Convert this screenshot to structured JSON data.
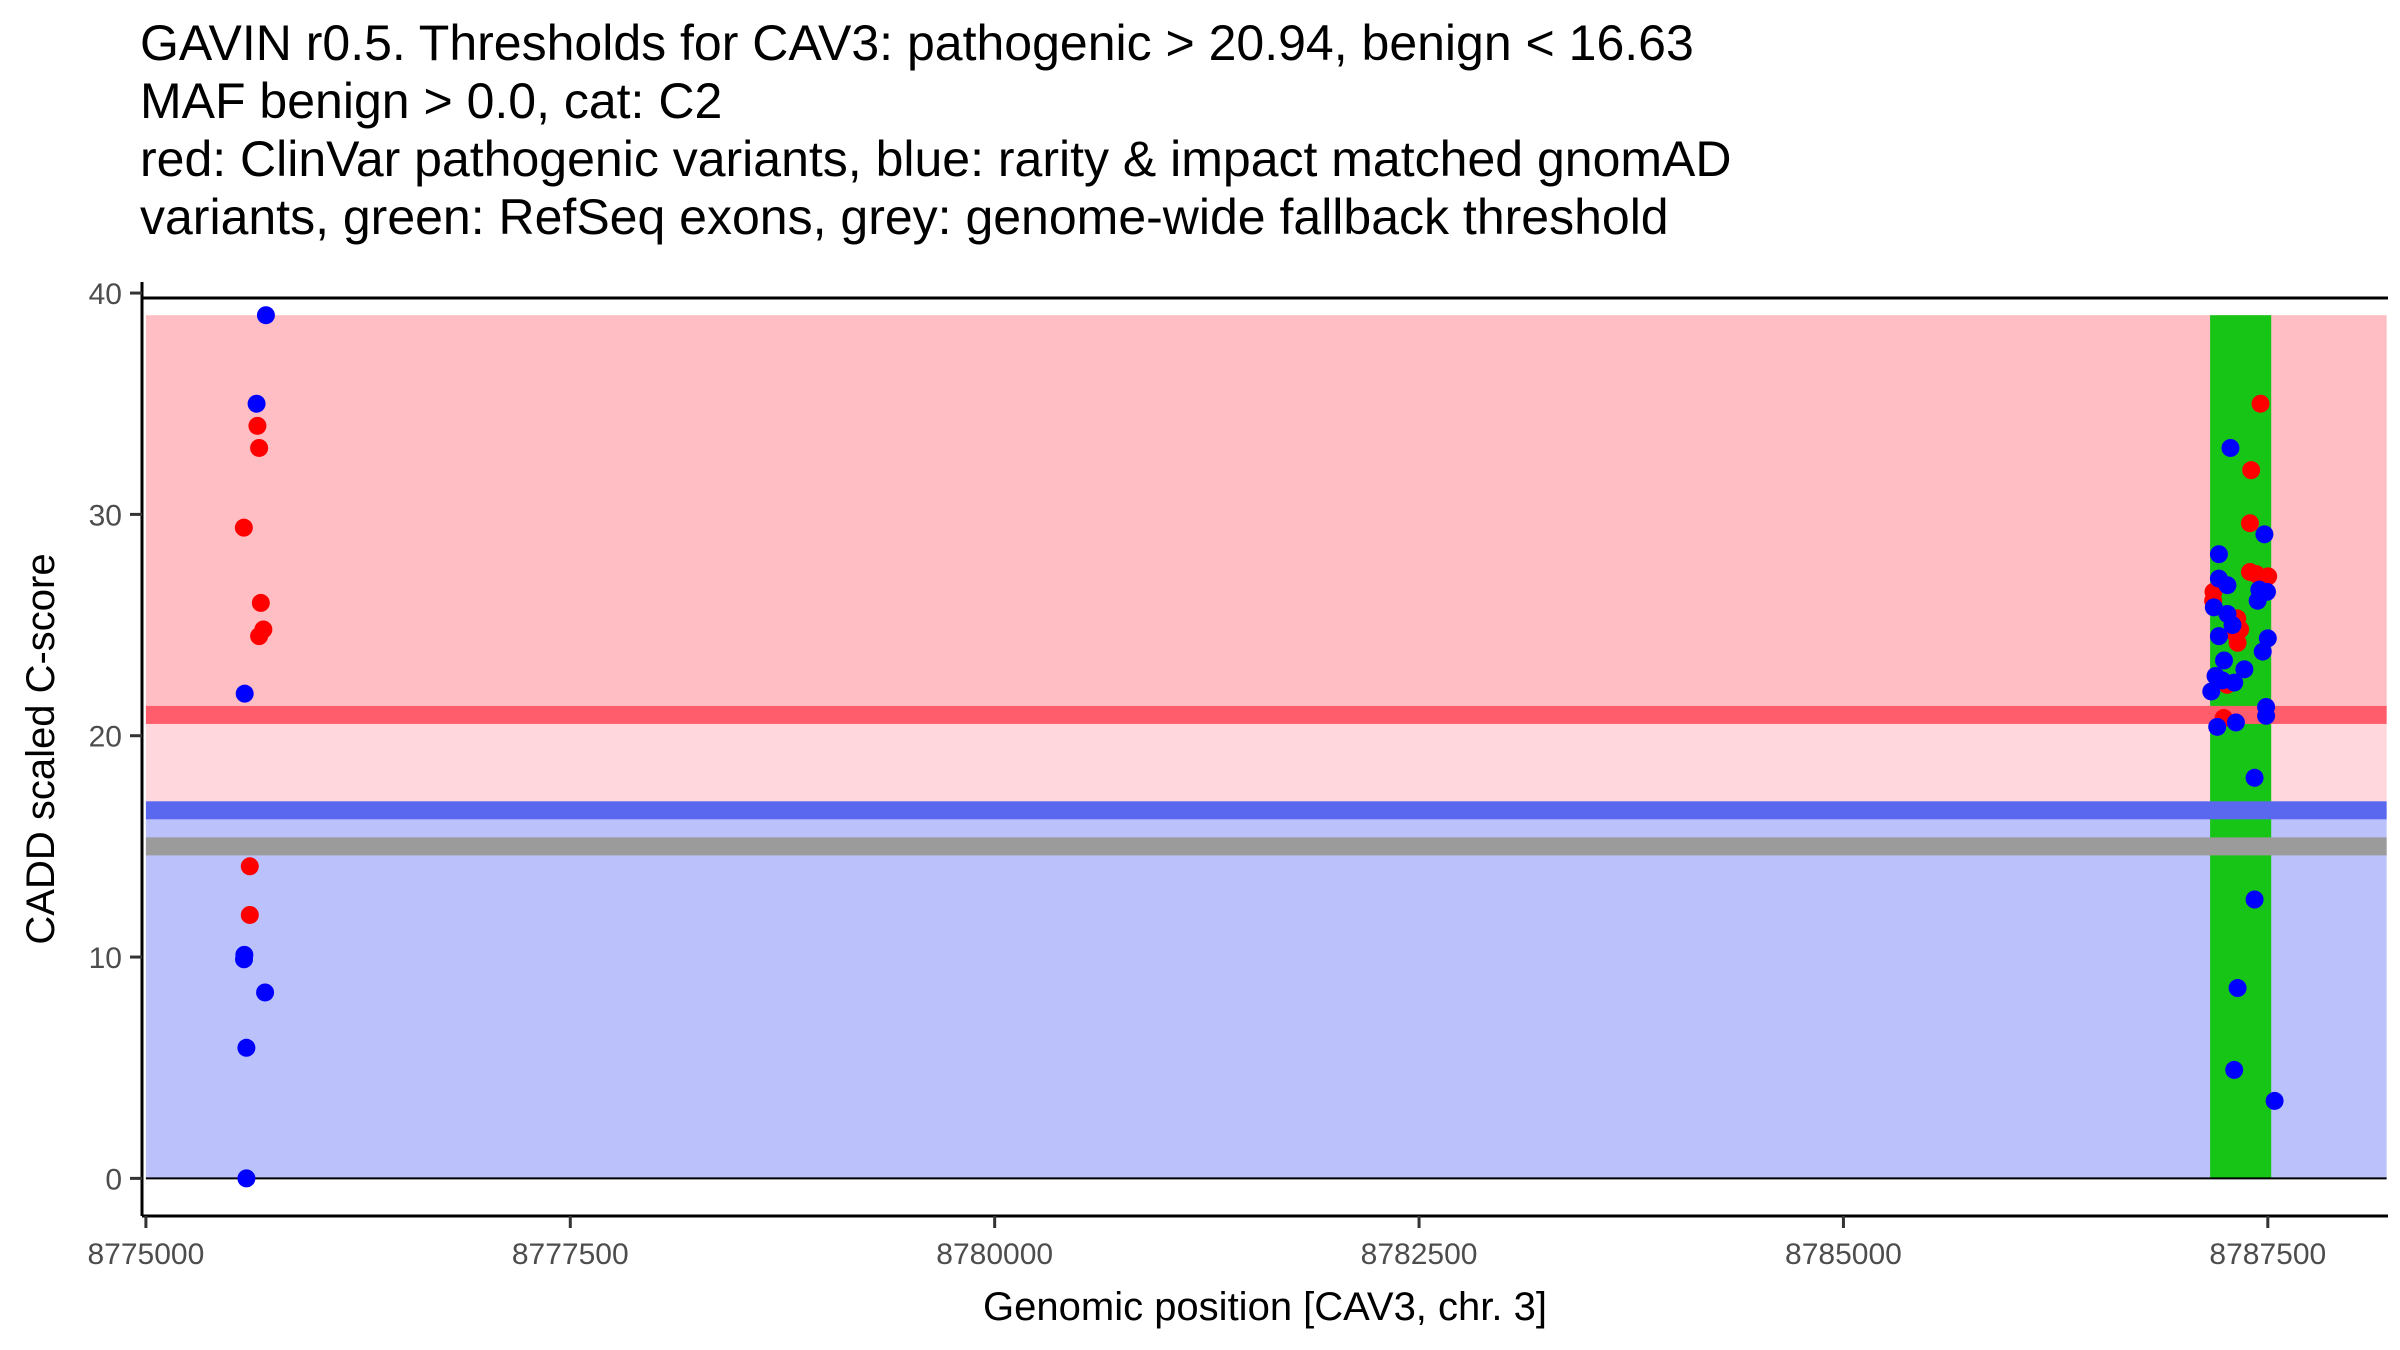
{
  "chart_data": {
    "type": "scatter",
    "title_lines": [
      "GAVIN r0.5. Thresholds for CAV3: pathogenic > 20.94, benign < 16.63",
      "MAF benign > 0.0, cat: C2",
      "red: ClinVar pathogenic variants, blue: rarity & impact matched gnomAD",
      "variants, green: RefSeq exons, grey: genome-wide fallback threshold"
    ],
    "xlabel": "Genomic position [CAV3, chr. 3]",
    "ylabel": "CADD scaled C-score",
    "xlim": [
      8774977,
      8788208
    ],
    "ylim": [
      -1.7,
      40.5
    ],
    "x_ticks": [
      8775000,
      8777500,
      8780000,
      8782500,
      8785000,
      8787500
    ],
    "x_tick_labels": [
      "8775000",
      "8777500",
      "8780000",
      "8782500",
      "8785000",
      "8787500"
    ],
    "y_ticks": [
      0,
      10,
      20,
      30,
      40
    ],
    "y_tick_labels": [
      "0",
      "10",
      "20",
      "30",
      "40"
    ],
    "x_range_data": [
      8775000,
      8788200
    ],
    "thresholds": {
      "pathogenic": 20.94,
      "benign": 16.63,
      "fallback": 15.0
    },
    "regions": {
      "pathogenic_upper": 39,
      "pathogenic_fill": "#FFBEC4",
      "mid_fill": "#FFD7DC",
      "benign_fill": "#BBC1FA",
      "pathogenic_line_color": "#FF5C6C",
      "benign_line_color": "#5A68F0",
      "fallback_line_color": "#9B9B9B"
    },
    "exon": {
      "start": 8787160,
      "end": 8787520,
      "ymin": 0,
      "ymax": 39,
      "color": "#17C517"
    },
    "series": [
      {
        "name": "ClinVar pathogenic variants",
        "color": "#FF0000",
        "points": [
          {
            "x": 8775577,
            "y": 29.4
          },
          {
            "x": 8775657,
            "y": 34.0
          },
          {
            "x": 8775667,
            "y": 33.0
          },
          {
            "x": 8775677,
            "y": 26.0
          },
          {
            "x": 8775667,
            "y": 24.5
          },
          {
            "x": 8775692,
            "y": 24.8
          },
          {
            "x": 8775612,
            "y": 14.1
          },
          {
            "x": 8775612,
            "y": 11.9
          },
          {
            "x": 8787457,
            "y": 35.0
          },
          {
            "x": 8787402,
            "y": 32.0
          },
          {
            "x": 8787395,
            "y": 29.6
          },
          {
            "x": 8787395,
            "y": 27.4
          },
          {
            "x": 8787432,
            "y": 27.3
          },
          {
            "x": 8787502,
            "y": 27.2
          },
          {
            "x": 8787180,
            "y": 26.5
          },
          {
            "x": 8787178,
            "y": 26.1
          },
          {
            "x": 8787320,
            "y": 25.3
          },
          {
            "x": 8787337,
            "y": 24.8
          },
          {
            "x": 8787310,
            "y": 24.6
          },
          {
            "x": 8787322,
            "y": 24.2
          },
          {
            "x": 8787260,
            "y": 22.3
          },
          {
            "x": 8787240,
            "y": 20.8
          }
        ]
      },
      {
        "name": "rarity & impact matched gnomAD variants",
        "color": "#0000FF",
        "points": [
          {
            "x": 8775707,
            "y": 39.0
          },
          {
            "x": 8775652,
            "y": 35.0
          },
          {
            "x": 8775582,
            "y": 21.9
          },
          {
            "x": 8775580,
            "y": 10.1
          },
          {
            "x": 8775578,
            "y": 9.9
          },
          {
            "x": 8775702,
            "y": 8.4
          },
          {
            "x": 8775592,
            "y": 5.9
          },
          {
            "x": 8775592,
            "y": 0.0
          },
          {
            "x": 8787280,
            "y": 33.0
          },
          {
            "x": 8787480,
            "y": 29.1
          },
          {
            "x": 8787212,
            "y": 28.2
          },
          {
            "x": 8787212,
            "y": 27.1
          },
          {
            "x": 8787450,
            "y": 26.6
          },
          {
            "x": 8787495,
            "y": 26.5
          },
          {
            "x": 8787440,
            "y": 26.1
          },
          {
            "x": 8787262,
            "y": 26.8
          },
          {
            "x": 8787182,
            "y": 25.8
          },
          {
            "x": 8787262,
            "y": 25.5
          },
          {
            "x": 8787292,
            "y": 25.0
          },
          {
            "x": 8787212,
            "y": 24.5
          },
          {
            "x": 8787500,
            "y": 24.4
          },
          {
            "x": 8787470,
            "y": 23.8
          },
          {
            "x": 8787242,
            "y": 23.4
          },
          {
            "x": 8787362,
            "y": 23.0
          },
          {
            "x": 8787192,
            "y": 22.7
          },
          {
            "x": 8787232,
            "y": 22.5
          },
          {
            "x": 8787302,
            "y": 22.4
          },
          {
            "x": 8787167,
            "y": 22.0
          },
          {
            "x": 8787490,
            "y": 21.3
          },
          {
            "x": 8787490,
            "y": 20.9
          },
          {
            "x": 8787312,
            "y": 20.6
          },
          {
            "x": 8787202,
            "y": 20.4
          },
          {
            "x": 8787422,
            "y": 18.1
          },
          {
            "x": 8787422,
            "y": 12.6
          },
          {
            "x": 8787322,
            "y": 8.6
          },
          {
            "x": 8787302,
            "y": 4.9
          },
          {
            "x": 8787540,
            "y": 3.5
          }
        ]
      }
    ]
  }
}
